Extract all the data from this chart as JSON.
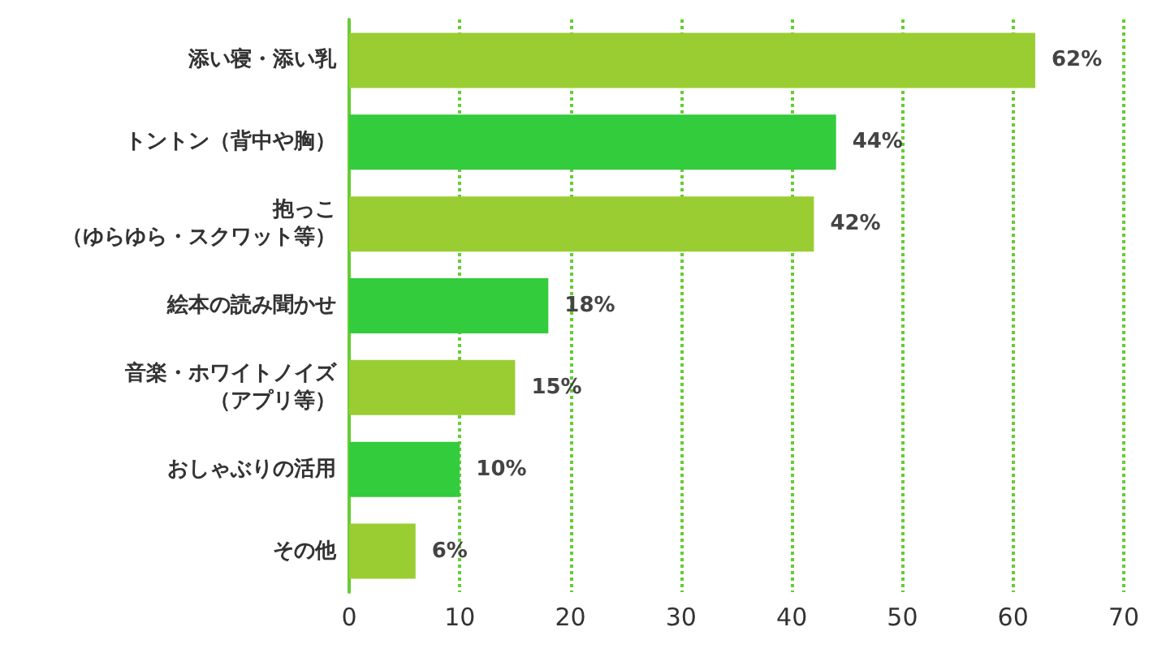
{
  "chart_data": {
    "type": "bar",
    "orientation": "horizontal",
    "categories": [
      "添い寝・添い乳",
      "トントン（背中や胸）",
      "抱っこ（ゆらゆら・スクワット等）",
      "絵本の読み聞かせ",
      "音楽・ホワイトノイズ（アプリ等）",
      "おしゃぶりの活用",
      "その他"
    ],
    "values": [
      62,
      44,
      42,
      18,
      15,
      10,
      6
    ],
    "colors": [
      "#9acd32",
      "#33cc3c",
      "#9acd32",
      "#33cc3c",
      "#9acd32",
      "#33cc3c",
      "#9acd32"
    ],
    "value_labels": [
      "62%",
      "44%",
      "42%",
      "18%",
      "15%",
      "10%",
      "6%"
    ],
    "xlim": [
      0,
      70
    ],
    "xticks": [
      0,
      10,
      20,
      30,
      40,
      50,
      60,
      70
    ],
    "grid": "x"
  }
}
